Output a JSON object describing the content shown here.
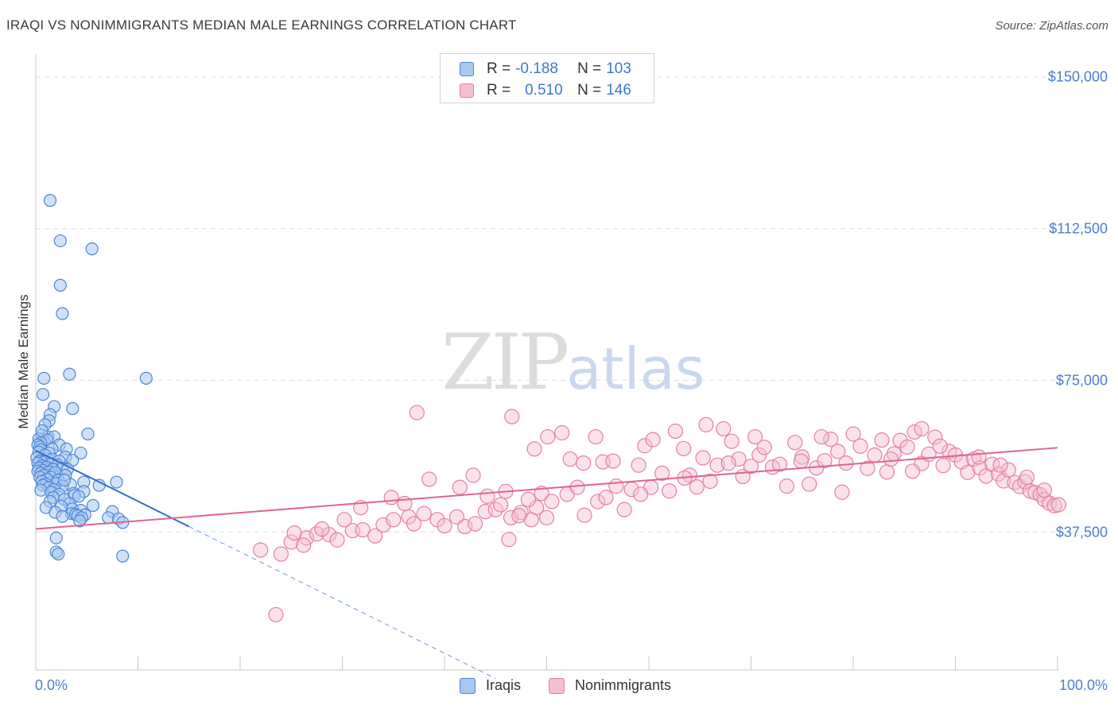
{
  "chart_title": "IRAQI VS NONIMMIGRANTS MEDIAN MALE EARNINGS CORRELATION CHART",
  "source": "Source: ZipAtlas.com",
  "watermark": {
    "zip": "ZIP",
    "atlas": "atlas"
  },
  "legend": {
    "rows": [
      {
        "r_label": "R =",
        "r_value": "-0.188",
        "n_label": "N =",
        "n_value": "103"
      },
      {
        "r_label": "R =",
        "r_value": "0.510",
        "n_label": "N =",
        "n_value": "146"
      }
    ]
  },
  "bottom_legend": {
    "series1": "Iraqis",
    "series2": "Nonimmigrants"
  },
  "colors": {
    "iraqis_fill": "#a9c8f0",
    "iraqis_stroke": "#4b86d6",
    "iraqis_line": "#2f6fd0",
    "nonimm_fill": "#f6bfd0",
    "nonimm_stroke": "#e47fa2",
    "nonimm_line": "#e0648e",
    "grid": "#dedede",
    "axis_text": "#4a7fcf"
  },
  "chart_data": {
    "type": "scatter",
    "title": "IRAQI VS NONIMMIGRANTS MEDIAN MALE EARNINGS CORRELATION CHART",
    "xlabel": "",
    "ylabel": "Median Male Earnings",
    "xlim": [
      0,
      100
    ],
    "ylim": [
      0,
      160000
    ],
    "x_tick_labels": [
      "0.0%",
      "100.0%"
    ],
    "y_ticks": [
      37500,
      75000,
      112500,
      150000
    ],
    "y_tick_labels": [
      "$37,500",
      "$75,000",
      "$112,500",
      "$150,000"
    ],
    "grid": true,
    "series": [
      {
        "name": "Iraqis",
        "R": -0.188,
        "N": 103,
        "trend": {
          "x0": 0,
          "y0": 57600,
          "x1": 15,
          "y1": 38800,
          "dashed_extension_to_x": 45
        },
        "points": [
          [
            1.4,
            119500
          ],
          [
            2.4,
            109500
          ],
          [
            5.5,
            107500
          ],
          [
            2.4,
            98500
          ],
          [
            2.6,
            91500
          ],
          [
            3.3,
            76500
          ],
          [
            0.8,
            75500
          ],
          [
            10.8,
            75500
          ],
          [
            0.7,
            71500
          ],
          [
            1.8,
            68500
          ],
          [
            3.6,
            68000
          ],
          [
            1.4,
            66500
          ],
          [
            1.3,
            65000
          ],
          [
            5.1,
            61700
          ],
          [
            0.6,
            61500
          ],
          [
            1.2,
            61000
          ],
          [
            1.8,
            61000
          ],
          [
            0.3,
            60500
          ],
          [
            1.1,
            60300
          ],
          [
            0.5,
            59500
          ],
          [
            0.2,
            59000
          ],
          [
            2.3,
            59000
          ],
          [
            0.4,
            58500
          ],
          [
            1.6,
            58000
          ],
          [
            0.5,
            57800
          ],
          [
            3.0,
            58000
          ],
          [
            0.3,
            57200
          ],
          [
            1.3,
            57000
          ],
          [
            0.9,
            56500
          ],
          [
            2.9,
            56000
          ],
          [
            0.1,
            55800
          ],
          [
            1.6,
            55500
          ],
          [
            3.6,
            55200
          ],
          [
            0.4,
            55000
          ],
          [
            2.3,
            55000
          ],
          [
            0.8,
            54800
          ],
          [
            0.2,
            54500
          ],
          [
            1.5,
            54300
          ],
          [
            2.1,
            54000
          ],
          [
            0.6,
            53800
          ],
          [
            1.0,
            53500
          ],
          [
            0.3,
            53300
          ],
          [
            1.7,
            53000
          ],
          [
            2.6,
            53200
          ],
          [
            3.1,
            53000
          ],
          [
            0.7,
            52700
          ],
          [
            0.2,
            52500
          ],
          [
            1.3,
            52300
          ],
          [
            1.9,
            52200
          ],
          [
            0.5,
            52000
          ],
          [
            2.9,
            51500
          ],
          [
            0.8,
            51500
          ],
          [
            1.5,
            51000
          ],
          [
            0.4,
            51000
          ],
          [
            1.1,
            50500
          ],
          [
            2.2,
            50300
          ],
          [
            0.6,
            50000
          ],
          [
            4.7,
            49800
          ],
          [
            7.9,
            49800
          ],
          [
            2.0,
            49500
          ],
          [
            1.0,
            49300
          ],
          [
            3.4,
            49200
          ],
          [
            0.7,
            49000
          ],
          [
            6.2,
            49000
          ],
          [
            2.6,
            48800
          ],
          [
            1.3,
            48500
          ],
          [
            1.8,
            48000
          ],
          [
            0.5,
            47800
          ],
          [
            4.7,
            47500
          ],
          [
            1.5,
            47300
          ],
          [
            3.7,
            47000
          ],
          [
            2.3,
            46800
          ],
          [
            3.8,
            46500
          ],
          [
            4.2,
            46300
          ],
          [
            1.7,
            46000
          ],
          [
            2.8,
            45500
          ],
          [
            1.4,
            45000
          ],
          [
            3.3,
            44500
          ],
          [
            5.6,
            44000
          ],
          [
            2.5,
            43800
          ],
          [
            1.0,
            43500
          ],
          [
            3.6,
            43200
          ],
          [
            4.4,
            42800
          ],
          [
            7.5,
            42500
          ],
          [
            1.9,
            42300
          ],
          [
            3.5,
            42000
          ],
          [
            3.9,
            41800
          ],
          [
            4.8,
            41700
          ],
          [
            4.1,
            41500
          ],
          [
            2.6,
            41300
          ],
          [
            4.5,
            41000
          ],
          [
            7.1,
            41000
          ],
          [
            8.1,
            40700
          ],
          [
            4.3,
            40200
          ],
          [
            8.5,
            39800
          ],
          [
            2.0,
            36000
          ],
          [
            2.0,
            32500
          ],
          [
            2.2,
            32000
          ],
          [
            8.5,
            31500
          ],
          [
            0.9,
            64000
          ],
          [
            0.6,
            62500
          ],
          [
            4.4,
            57000
          ],
          [
            2.8,
            50300
          ]
        ]
      },
      {
        "name": "Nonimmigrants",
        "R": 0.51,
        "N": 146,
        "trend": {
          "x0": 0,
          "y0": 38200,
          "x1": 100,
          "y1": 58300
        },
        "points": [
          [
            23.5,
            17000
          ],
          [
            22.0,
            33000
          ],
          [
            24.0,
            32000
          ],
          [
            25.0,
            35000
          ],
          [
            26.5,
            36000
          ],
          [
            27.5,
            37000
          ],
          [
            28.7,
            36800
          ],
          [
            31.0,
            37800
          ],
          [
            32.0,
            38000
          ],
          [
            33.2,
            36500
          ],
          [
            34.0,
            39200
          ],
          [
            35.0,
            40500
          ],
          [
            36.5,
            41200
          ],
          [
            37.0,
            39500
          ],
          [
            38.0,
            42000
          ],
          [
            39.3,
            40500
          ],
          [
            40.0,
            39000
          ],
          [
            41.2,
            41200
          ],
          [
            42.0,
            38800
          ],
          [
            43.0,
            39500
          ],
          [
            44.0,
            42500
          ],
          [
            45.0,
            43000
          ],
          [
            45.5,
            44200
          ],
          [
            46.5,
            41000
          ],
          [
            47.5,
            42300
          ],
          [
            48.5,
            40500
          ],
          [
            49.0,
            43500
          ],
          [
            50.0,
            41000
          ],
          [
            25.3,
            37200
          ],
          [
            26.2,
            34200
          ],
          [
            28.0,
            38200
          ],
          [
            29.5,
            35500
          ],
          [
            30.2,
            40500
          ],
          [
            31.8,
            43500
          ],
          [
            34.8,
            46000
          ],
          [
            36.1,
            44500
          ],
          [
            37.3,
            67000
          ],
          [
            38.5,
            50500
          ],
          [
            41.5,
            48500
          ],
          [
            42.8,
            51500
          ],
          [
            44.2,
            46300
          ],
          [
            46.0,
            47500
          ],
          [
            47.3,
            41500
          ],
          [
            48.2,
            45500
          ],
          [
            49.5,
            47000
          ],
          [
            50.5,
            45000
          ],
          [
            52.0,
            46800
          ],
          [
            53.0,
            48500
          ],
          [
            53.7,
            41600
          ],
          [
            55.0,
            45000
          ],
          [
            55.8,
            46000
          ],
          [
            46.6,
            66000
          ],
          [
            46.3,
            35600
          ],
          [
            48.8,
            58000
          ],
          [
            50.1,
            61000
          ],
          [
            51.5,
            62000
          ],
          [
            52.3,
            55500
          ],
          [
            53.6,
            54500
          ],
          [
            54.8,
            61000
          ],
          [
            55.5,
            54800
          ],
          [
            56.8,
            48800
          ],
          [
            57.6,
            43000
          ],
          [
            58.3,
            48000
          ],
          [
            59.0,
            54000
          ],
          [
            59.6,
            58800
          ],
          [
            60.4,
            60300
          ],
          [
            61.3,
            52000
          ],
          [
            62.0,
            47600
          ],
          [
            62.6,
            62400
          ],
          [
            63.4,
            58100
          ],
          [
            64.0,
            51500
          ],
          [
            64.7,
            48600
          ],
          [
            65.3,
            55800
          ],
          [
            66.0,
            50000
          ],
          [
            66.7,
            54000
          ],
          [
            67.3,
            63000
          ],
          [
            68.1,
            59900
          ],
          [
            68.8,
            55500
          ],
          [
            69.2,
            51200
          ],
          [
            70.0,
            53700
          ],
          [
            70.8,
            56500
          ],
          [
            71.3,
            58400
          ],
          [
            72.1,
            53500
          ],
          [
            72.8,
            54200
          ],
          [
            73.5,
            48800
          ],
          [
            74.3,
            59600
          ],
          [
            75.0,
            56000
          ],
          [
            75.7,
            49300
          ],
          [
            76.4,
            53300
          ],
          [
            77.2,
            55100
          ],
          [
            77.8,
            60400
          ],
          [
            78.5,
            57400
          ],
          [
            79.3,
            54500
          ],
          [
            80.0,
            61700
          ],
          [
            80.7,
            58700
          ],
          [
            81.4,
            53200
          ],
          [
            82.1,
            56500
          ],
          [
            82.8,
            60200
          ],
          [
            83.3,
            52300
          ],
          [
            84.0,
            56800
          ],
          [
            84.6,
            60100
          ],
          [
            85.3,
            58500
          ],
          [
            86.0,
            62200
          ],
          [
            86.7,
            54400
          ],
          [
            87.4,
            56700
          ],
          [
            88.0,
            60900
          ],
          [
            88.8,
            53900
          ],
          [
            89.4,
            57400
          ],
          [
            90.0,
            56500
          ],
          [
            90.6,
            54800
          ],
          [
            91.2,
            52200
          ],
          [
            91.8,
            55500
          ],
          [
            92.4,
            53300
          ],
          [
            93.0,
            51300
          ],
          [
            93.6,
            54200
          ],
          [
            94.2,
            51800
          ],
          [
            94.7,
            50100
          ],
          [
            95.2,
            52800
          ],
          [
            95.8,
            49700
          ],
          [
            96.3,
            48700
          ],
          [
            96.8,
            49900
          ],
          [
            97.3,
            47600
          ],
          [
            97.8,
            47200
          ],
          [
            98.3,
            46700
          ],
          [
            98.7,
            45500
          ],
          [
            99.2,
            44600
          ],
          [
            99.7,
            44000
          ],
          [
            100.1,
            44200
          ],
          [
            65.6,
            64000
          ],
          [
            60.2,
            48500
          ],
          [
            70.4,
            61000
          ],
          [
            74.9,
            55000
          ],
          [
            63.5,
            50800
          ],
          [
            56.5,
            55000
          ],
          [
            59.2,
            46800
          ],
          [
            67.8,
            54500
          ],
          [
            76.9,
            61000
          ],
          [
            78.9,
            47300
          ],
          [
            83.7,
            55500
          ],
          [
            85.8,
            52500
          ],
          [
            88.5,
            58700
          ],
          [
            86.7,
            63000
          ],
          [
            94.4,
            54000
          ],
          [
            92.3,
            56000
          ],
          [
            97.0,
            51000
          ],
          [
            98.7,
            47800
          ]
        ]
      }
    ]
  }
}
